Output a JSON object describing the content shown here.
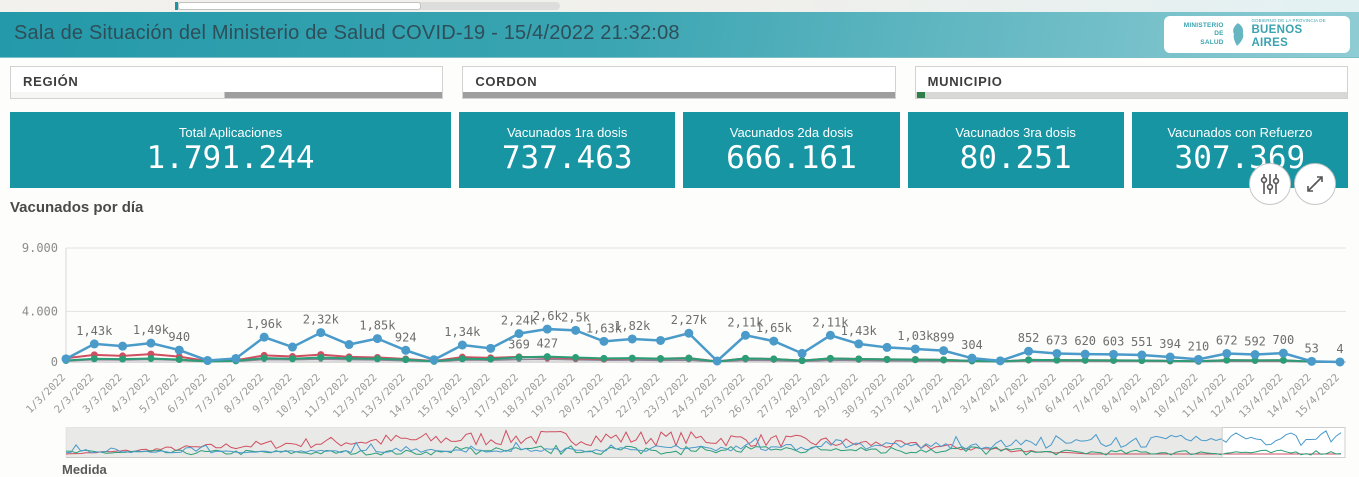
{
  "header": {
    "title": "Sala de Situación del Ministerio de Salud COVID-19 - 15/4/2022 21:32:08",
    "logo": {
      "ministry_line1": "MINISTERIO DE",
      "ministry_line2": "SALUD",
      "gov_small": "GOBIERNO DE LA PROVINCIA DE",
      "gov_big": "BUENOS AIRES"
    }
  },
  "filters": [
    {
      "label": "REGIÓN"
    },
    {
      "label": "CORDON"
    },
    {
      "label": "MUNICIPIO"
    }
  ],
  "kpis": [
    {
      "label": "Total Aplicaciones",
      "value": "1.791.244"
    },
    {
      "label": "Vacunados 1ra dosis",
      "value": "737.463"
    },
    {
      "label": "Vacunados 2da dosis",
      "value": "666.161"
    },
    {
      "label": "Vacunados 3ra dosis",
      "value": "80.251"
    },
    {
      "label": "Vacunados con Refuerzo",
      "value": "307.369"
    }
  ],
  "chart": {
    "title": "Vacunados por día",
    "footer_label": "Medida"
  },
  "colors": {
    "accent_teal": "#1795a3",
    "header_gradient_start": "#2499a9",
    "header_gradient_end": "#8fccd4",
    "selected_green": "#2e8048",
    "series_blue": "#4a9aca",
    "series_red": "#cf4f60",
    "series_green": "#2b9e77",
    "series_gray": "#8e8498"
  },
  "chart_data": {
    "type": "line",
    "title": "Vacunados por día",
    "xlabel": "",
    "ylabel": "",
    "legend": false,
    "grid": "horizontal",
    "ylim": [
      0,
      9000
    ],
    "yticks": [
      {
        "label": "9.000",
        "value": 9000
      },
      {
        "label": "4.000",
        "value": 4000
      },
      {
        "label": "0",
        "value": 0
      }
    ],
    "x": [
      "1/3/2022",
      "2/3/2022",
      "3/3/2022",
      "4/3/2022",
      "5/3/2022",
      "6/3/2022",
      "7/3/2022",
      "8/3/2022",
      "9/3/2022",
      "10/3/2022",
      "11/3/2022",
      "12/3/2022",
      "13/3/2022",
      "14/3/2022",
      "15/3/2022",
      "16/3/2022",
      "17/3/2022",
      "18/3/2022",
      "19/3/2022",
      "20/3/2022",
      "21/3/2022",
      "22/3/2022",
      "23/3/2022",
      "24/3/2022",
      "25/3/2022",
      "26/3/2022",
      "27/3/2022",
      "28/3/2022",
      "29/3/2022",
      "30/3/2022",
      "31/3/2022",
      "1/4/2022",
      "2/4/2022",
      "3/4/2022",
      "4/4/2022",
      "5/4/2022",
      "6/4/2022",
      "7/4/2022",
      "8/4/2022",
      "9/4/2022",
      "10/4/2022",
      "11/4/2022",
      "12/4/2022",
      "13/4/2022",
      "14/4/2022",
      "15/4/2022"
    ],
    "series": [
      {
        "name": "gray",
        "color": "#8e8498",
        "width": 1.6,
        "marker": 2.5,
        "values": [
          90,
          180,
          160,
          200,
          140,
          25,
          60,
          190,
          170,
          210,
          180,
          160,
          110,
          35,
          160,
          140,
          190,
          210,
          170,
          140,
          150,
          130,
          150,
          25,
          140,
          120,
          55,
          140,
          120,
          100,
          95,
          85,
          45,
          18,
          85,
          75,
          70,
          65,
          60,
          45,
          28,
          75,
          65,
          70,
          8,
          1
        ]
      },
      {
        "name": "red",
        "color": "#cf4f60",
        "width": 2,
        "marker": 3.5,
        "values": [
          300,
          560,
          480,
          620,
          420,
          70,
          140,
          520,
          430,
          580,
          400,
          360,
          240,
          80,
          380,
          330,
          400,
          360,
          290,
          240,
          290,
          270,
          310,
          50,
          290,
          240,
          110,
          290,
          240,
          210,
          200,
          170,
          90,
          40,
          170,
          150,
          140,
          130,
          120,
          90,
          55,
          145,
          125,
          135,
          15,
          2
        ]
      },
      {
        "name": "green",
        "color": "#2b9e77",
        "width": 2,
        "marker": 3.5,
        "values": [
          120,
          260,
          230,
          280,
          200,
          40,
          90,
          310,
          260,
          360,
          290,
          260,
          190,
          50,
          260,
          230,
          369,
          427,
          360,
          290,
          310,
          270,
          310,
          30,
          290,
          240,
          110,
          290,
          240,
          210,
          190,
          170,
          90,
          30,
          170,
          150,
          140,
          130,
          120,
          90,
          60,
          150,
          130,
          140,
          18,
          2
        ],
        "labels": [
          null,
          null,
          null,
          null,
          null,
          null,
          null,
          null,
          null,
          null,
          null,
          null,
          null,
          null,
          null,
          null,
          "369",
          "427",
          null,
          null,
          null,
          null,
          null,
          null,
          null,
          null,
          null,
          null,
          null,
          null,
          null,
          null,
          null,
          null,
          null,
          null,
          null,
          null,
          null,
          null,
          null,
          null,
          null,
          null,
          null,
          null
        ]
      },
      {
        "name": "blue",
        "color": "#4a9aca",
        "width": 2.5,
        "marker": 4.5,
        "values": [
          250,
          1430,
          1250,
          1490,
          940,
          120,
          280,
          1960,
          1180,
          2320,
          1380,
          1850,
          924,
          180,
          1340,
          1080,
          2240,
          2600,
          2500,
          1630,
          1820,
          1700,
          2270,
          80,
          2110,
          1650,
          680,
          2110,
          1430,
          1150,
          1030,
          899,
          304,
          90,
          852,
          673,
          620,
          603,
          551,
          394,
          210,
          672,
          592,
          700,
          53,
          4
        ],
        "labels": [
          null,
          "1,43k",
          null,
          "1,49k",
          "940",
          null,
          null,
          "1,96k",
          null,
          "2,32k",
          null,
          "1,85k",
          "924",
          null,
          "1,34k",
          null,
          "2,24k",
          "2,6k",
          "2,5k",
          "1,63k",
          "1,82k",
          null,
          "2,27k",
          null,
          "2,11k",
          "1,65k",
          null,
          "2,11k",
          "1,43k",
          null,
          "1,03k",
          "899",
          "304",
          null,
          "852",
          "673",
          "620",
          "603",
          "551",
          "394",
          "210",
          "672",
          "592",
          "700",
          "53",
          "4"
        ]
      }
    ],
    "navigator": {
      "selection_start_pct": 90.4,
      "selection_end_pct": 100
    }
  }
}
